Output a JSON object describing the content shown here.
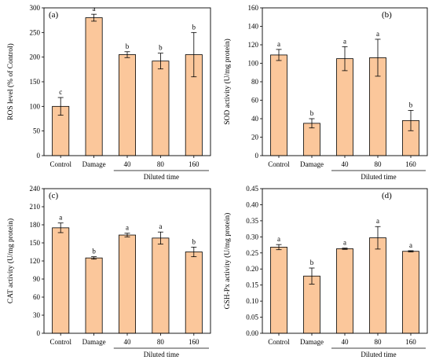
{
  "style": {
    "bar_fill": "#FBC79B",
    "bar_stroke": "#000000"
  },
  "group_label": "Diluted time",
  "chart_data": [
    {
      "type": "bar",
      "panel_label": "(a)",
      "categories": [
        "Control",
        "Damage",
        "40",
        "80",
        "160"
      ],
      "values": [
        100,
        280,
        205,
        192,
        205
      ],
      "errors": [
        18,
        7,
        6,
        16,
        45
      ],
      "significance": [
        "c",
        "a",
        "b",
        "b",
        "b"
      ],
      "ylabel": "ROS level (% of Control)",
      "ylim": [
        0,
        300
      ],
      "yticks": [
        0,
        50,
        100,
        150,
        200,
        250,
        300
      ],
      "ytick_labels": [
        "0",
        "50",
        "100",
        "150",
        "200",
        "250",
        "300"
      ],
      "grid": false,
      "legend": "none"
    },
    {
      "type": "bar",
      "panel_label": "(b)",
      "categories": [
        "Control",
        "Damage",
        "40",
        "80",
        "160"
      ],
      "values": [
        109,
        35,
        105,
        106,
        38
      ],
      "errors": [
        6,
        5,
        13,
        20,
        11
      ],
      "significance": [
        "a",
        "b",
        "a",
        "a",
        "b"
      ],
      "ylabel": "SOD activity (U/mg protein)",
      "ylim": [
        0,
        160
      ],
      "yticks": [
        0,
        20,
        40,
        60,
        80,
        100,
        120,
        140,
        160
      ],
      "ytick_labels": [
        "0",
        "20",
        "40",
        "60",
        "80",
        "100",
        "120",
        "140",
        "160"
      ],
      "grid": false,
      "legend": "none"
    },
    {
      "type": "bar",
      "panel_label": "(c)",
      "categories": [
        "Control",
        "Damage",
        "40",
        "80",
        "160"
      ],
      "values": [
        175,
        125,
        163,
        158,
        135
      ],
      "errors": [
        8,
        2,
        3,
        10,
        8
      ],
      "significance": [
        "a",
        "b",
        "a",
        "a",
        "b"
      ],
      "ylabel": "CAT activity (U/mg protein)",
      "ylim": [
        0,
        240
      ],
      "yticks": [
        0,
        30,
        60,
        90,
        120,
        150,
        180,
        210,
        240
      ],
      "ytick_labels": [
        "0",
        "30",
        "60",
        "90",
        "120",
        "150",
        "180",
        "210",
        "240"
      ],
      "grid": false,
      "legend": "none"
    },
    {
      "type": "bar",
      "panel_label": "(d)",
      "categories": [
        "Control",
        "Damage",
        "40",
        "80",
        "160"
      ],
      "values": [
        0.268,
        0.178,
        0.263,
        0.297,
        0.255
      ],
      "errors": [
        0.008,
        0.025,
        0.002,
        0.035,
        0.002
      ],
      "significance": [
        "a",
        "b",
        "a",
        "a",
        "a"
      ],
      "ylabel": "GSH-Px activity (U/mg protein)",
      "ylim": [
        0,
        0.45
      ],
      "yticks": [
        0,
        0.05,
        0.1,
        0.15,
        0.2,
        0.25,
        0.3,
        0.35,
        0.4,
        0.45
      ],
      "ytick_labels": [
        "0.00",
        "0.05",
        "0.10",
        "0.15",
        "0.20",
        "0.25",
        "0.30",
        "0.35",
        "0.40",
        "0.45"
      ],
      "grid": false,
      "legend": "none"
    }
  ]
}
